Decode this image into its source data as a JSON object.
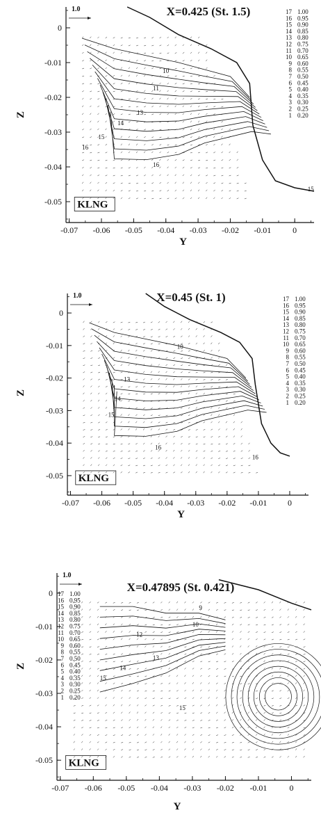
{
  "chart_data": [
    {
      "type": "contour",
      "title": "X=0.425 (St. 1.5)",
      "xlabel": "Y",
      "ylabel": "Z",
      "xticks": [
        "-0.07",
        "-0.06",
        "-0.05",
        "-0.04",
        "-0.03",
        "-0.02",
        "-0.01",
        "0"
      ],
      "yticks": [
        "0",
        "-0.01",
        "-0.02",
        "-0.03",
        "-0.04",
        "-0.05"
      ],
      "xlim": [
        -0.071,
        0.006
      ],
      "ylim": [
        -0.056,
        0.006
      ],
      "reference_vector": "1.0",
      "box_label": "KLNG",
      "legend_position": "top-right",
      "legend": [
        {
          "level": "17",
          "value": "1.00"
        },
        {
          "level": "16",
          "value": "0.95"
        },
        {
          "level": "15",
          "value": "0.90"
        },
        {
          "level": "14",
          "value": "0.85"
        },
        {
          "level": "13",
          "value": "0.80"
        },
        {
          "level": "12",
          "value": "0.75"
        },
        {
          "level": "11",
          "value": "0.70"
        },
        {
          "level": "10",
          "value": "0.65"
        },
        {
          "level": "9",
          "value": "0.60"
        },
        {
          "level": "8",
          "value": "0.55"
        },
        {
          "level": "7",
          "value": "0.50"
        },
        {
          "level": "6",
          "value": "0.45"
        },
        {
          "level": "5",
          "value": "0.40"
        },
        {
          "level": "4",
          "value": "0.35"
        },
        {
          "level": "3",
          "value": "0.30"
        },
        {
          "level": "2",
          "value": "0.25"
        },
        {
          "level": "1",
          "value": "0.20"
        }
      ],
      "contour_labels": [
        "10",
        "11",
        "13",
        "14",
        "15",
        "16",
        "15",
        "16"
      ]
    },
    {
      "type": "contour",
      "title": "X=0.45 (St. 1)",
      "xlabel": "Y",
      "ylabel": "Z",
      "xticks": [
        "-0.07",
        "-0.06",
        "-0.05",
        "-0.04",
        "-0.03",
        "-0.02",
        "-0.01",
        "0"
      ],
      "yticks": [
        "0",
        "-0.01",
        "-0.02",
        "-0.03",
        "-0.04",
        "-0.05"
      ],
      "xlim": [
        -0.071,
        0.006
      ],
      "ylim": [
        -0.056,
        0.006
      ],
      "reference_vector": "1.0",
      "box_label": "KLNG",
      "legend_position": "top-right",
      "legend": [
        {
          "level": "17",
          "value": "1.00"
        },
        {
          "level": "16",
          "value": "0.95"
        },
        {
          "level": "15",
          "value": "0.90"
        },
        {
          "level": "14",
          "value": "0.85"
        },
        {
          "level": "13",
          "value": "0.80"
        },
        {
          "level": "12",
          "value": "0.75"
        },
        {
          "level": "11",
          "value": "0.70"
        },
        {
          "level": "10",
          "value": "0.65"
        },
        {
          "level": "9",
          "value": "0.60"
        },
        {
          "level": "8",
          "value": "0.55"
        },
        {
          "level": "7",
          "value": "0.50"
        },
        {
          "level": "6",
          "value": "0.45"
        },
        {
          "level": "5",
          "value": "0.40"
        },
        {
          "level": "4",
          "value": "0.35"
        },
        {
          "level": "3",
          "value": "0.30"
        },
        {
          "level": "2",
          "value": "0.25"
        },
        {
          "level": "1",
          "value": "0.20"
        }
      ],
      "contour_labels": [
        "10",
        "13",
        "14",
        "15",
        "16",
        "16"
      ]
    },
    {
      "type": "contour",
      "title": "X=0.47895 (St. 0.421)",
      "xlabel": "Y",
      "ylabel": "Z",
      "xticks": [
        "-0.07",
        "-0.06",
        "-0.05",
        "-0.04",
        "-0.03",
        "-0.02",
        "-0.01",
        "0"
      ],
      "yticks": [
        "0",
        "-0.01",
        "-0.02",
        "-0.03",
        "-0.04",
        "-0.05"
      ],
      "xlim": [
        -0.071,
        0.006
      ],
      "ylim": [
        -0.056,
        0.006
      ],
      "reference_vector": "1.0",
      "box_label": "KLNG",
      "legend_position": "top-left",
      "legend": [
        {
          "level": "17",
          "value": "1.00"
        },
        {
          "level": "16",
          "value": "0.95"
        },
        {
          "level": "15",
          "value": "0.90"
        },
        {
          "level": "14",
          "value": "0.85"
        },
        {
          "level": "13",
          "value": "0.80"
        },
        {
          "level": "12",
          "value": "0.75"
        },
        {
          "level": "11",
          "value": "0.70"
        },
        {
          "level": "10",
          "value": "0.65"
        },
        {
          "level": "9",
          "value": "0.60"
        },
        {
          "level": "8",
          "value": "0.55"
        },
        {
          "level": "7",
          "value": "0.50"
        },
        {
          "level": "6",
          "value": "0.45"
        },
        {
          "level": "5",
          "value": "0.40"
        },
        {
          "level": "4",
          "value": "0.35"
        },
        {
          "level": "3",
          "value": "0.30"
        },
        {
          "level": "2",
          "value": "0.25"
        },
        {
          "level": "1",
          "value": "0.20"
        }
      ],
      "contour_labels": [
        "9",
        "10",
        "12",
        "13",
        "14",
        "15",
        "15"
      ]
    }
  ]
}
